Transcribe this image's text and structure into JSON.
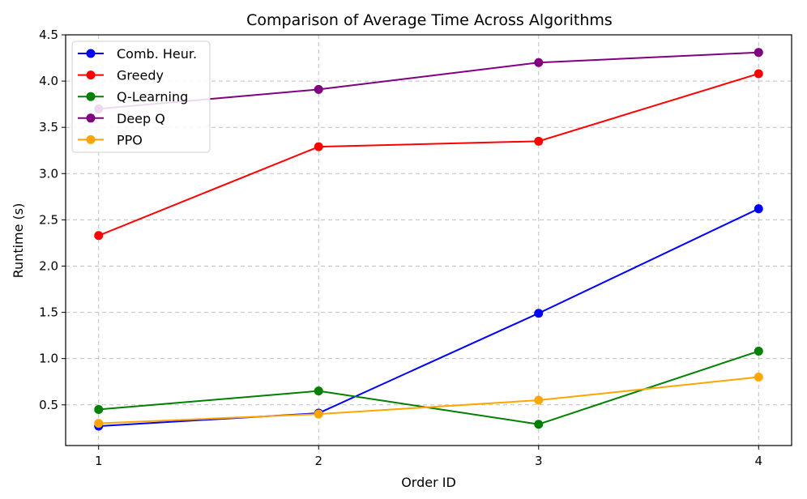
{
  "chart_data": {
    "type": "line",
    "title": "Comparison of Average Time Across Algorithms",
    "xlabel": "Order ID",
    "ylabel": "Runtime (s)",
    "x": [
      1,
      2,
      3,
      4
    ],
    "x_tick_labels": [
      "1",
      "2",
      "3",
      "4"
    ],
    "xlim": [
      0.85,
      4.15
    ],
    "ylim": [
      0.06,
      4.5
    ],
    "y_ticks": [
      0.5,
      1.0,
      1.5,
      2.0,
      2.5,
      3.0,
      3.5,
      4.0,
      4.5
    ],
    "y_tick_labels": [
      "0.5",
      "1.0",
      "1.5",
      "2.0",
      "2.5",
      "3.0",
      "3.5",
      "4.0",
      "4.5"
    ],
    "grid": true,
    "legend_position": "top-left",
    "series": [
      {
        "name": "Comb. Heur.",
        "color": "#0000ff",
        "values": [
          0.27,
          0.41,
          1.49,
          2.62
        ]
      },
      {
        "name": "Greedy",
        "color": "#ff0000",
        "values": [
          2.33,
          3.29,
          3.35,
          4.08
        ]
      },
      {
        "name": "Q-Learning",
        "color": "#008000",
        "values": [
          0.45,
          0.65,
          0.29,
          1.08
        ]
      },
      {
        "name": "Deep Q",
        "color": "#800080",
        "values": [
          3.7,
          3.91,
          4.2,
          4.31
        ]
      },
      {
        "name": "PPO",
        "color": "#ffa500",
        "values": [
          0.3,
          0.4,
          0.55,
          0.8
        ]
      }
    ]
  }
}
